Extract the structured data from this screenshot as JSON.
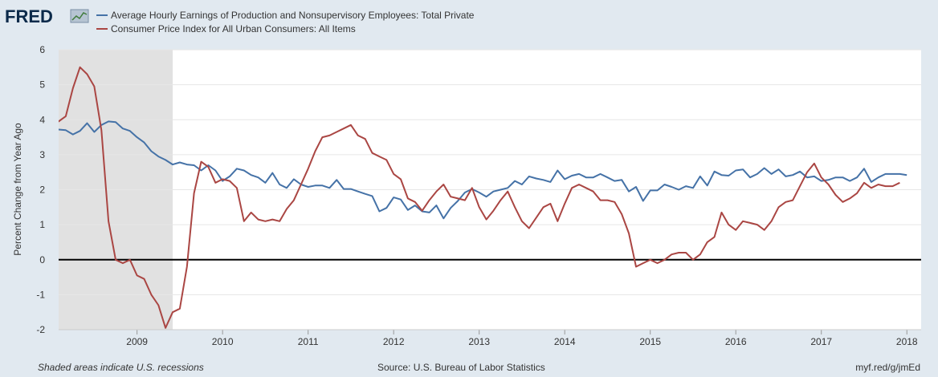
{
  "logo": {
    "text": "FRED"
  },
  "footer": {
    "left": "Shaded areas indicate U.S. recessions",
    "source": "Source: U.S. Bureau of Labor Statistics",
    "link": "myf.red/g/jmEd"
  },
  "colors": {
    "background": "#e1e9f0",
    "plot_bg": "#ffffff",
    "recession": "#e1e1e1",
    "series_wages": "#4572a7",
    "series_cpi": "#aa4643",
    "zero_line": "#000000"
  },
  "chart_data": {
    "type": "line",
    "ylabel": "Percent Change from Year Ago",
    "xlabel": "",
    "ylim": [
      -2,
      6
    ],
    "yticks": [
      -2,
      -1,
      0,
      1,
      2,
      3,
      4,
      5,
      6
    ],
    "xlim": [
      "2008-02",
      "2018-03"
    ],
    "xticks": [
      "2009",
      "2010",
      "2011",
      "2012",
      "2013",
      "2014",
      "2015",
      "2016",
      "2017",
      "2018"
    ],
    "grid": "horizontal",
    "legend_position": "top-left",
    "recessions": [
      {
        "start": "2008-02",
        "end": "2009-06"
      }
    ],
    "series": [
      {
        "name": "Average Hourly Earnings of Production and Nonsupervisory Employees: Total Private",
        "color": "#4572a7",
        "start": "2008-01",
        "values": [
          3.85,
          3.72,
          3.7,
          3.58,
          3.68,
          3.9,
          3.65,
          3.85,
          3.95,
          3.93,
          3.75,
          3.68,
          3.5,
          3.35,
          3.1,
          2.95,
          2.85,
          2.72,
          2.78,
          2.72,
          2.7,
          2.55,
          2.7,
          2.55,
          2.25,
          2.38,
          2.6,
          2.55,
          2.42,
          2.35,
          2.2,
          2.48,
          2.15,
          2.05,
          2.3,
          2.15,
          2.08,
          2.12,
          2.12,
          2.05,
          2.28,
          2.02,
          2.02,
          1.95,
          1.88,
          1.82,
          1.38,
          1.48,
          1.78,
          1.72,
          1.42,
          1.55,
          1.38,
          1.35,
          1.55,
          1.18,
          1.48,
          1.68,
          1.92,
          2.02,
          1.92,
          1.8,
          1.95,
          2.0,
          2.05,
          2.25,
          2.15,
          2.38,
          2.32,
          2.28,
          2.22,
          2.55,
          2.3,
          2.4,
          2.45,
          2.35,
          2.35,
          2.45,
          2.35,
          2.25,
          2.28,
          1.95,
          2.08,
          1.68,
          1.98,
          1.98,
          2.15,
          2.08,
          2.0,
          2.1,
          2.05,
          2.38,
          2.12,
          2.52,
          2.42,
          2.4,
          2.55,
          2.58,
          2.35,
          2.45,
          2.62,
          2.45,
          2.58,
          2.38,
          2.42,
          2.52,
          2.35,
          2.38,
          2.25,
          2.28,
          2.35,
          2.35,
          2.25,
          2.35,
          2.6,
          2.22,
          2.35,
          2.45,
          2.45,
          2.45,
          2.42
        ]
      },
      {
        "name": "Consumer Price Index for All Urban Consumers: All Items",
        "color": "#aa4643",
        "start": "2008-01",
        "values": [
          4.0,
          3.95,
          4.1,
          4.9,
          5.5,
          5.3,
          4.95,
          3.7,
          1.1,
          0.0,
          -0.1,
          0.0,
          -0.45,
          -0.55,
          -1.0,
          -1.3,
          -1.95,
          -1.5,
          -1.4,
          -0.2,
          1.9,
          2.8,
          2.65,
          2.2,
          2.3,
          2.25,
          2.05,
          1.1,
          1.35,
          1.15,
          1.1,
          1.15,
          1.1,
          1.45,
          1.7,
          2.15,
          2.6,
          3.1,
          3.5,
          3.55,
          3.65,
          3.75,
          3.85,
          3.55,
          3.45,
          3.05,
          2.95,
          2.85,
          2.45,
          2.3,
          1.75,
          1.65,
          1.4,
          1.7,
          1.95,
          2.15,
          1.8,
          1.75,
          1.7,
          2.05,
          1.5,
          1.15,
          1.4,
          1.7,
          1.95,
          1.5,
          1.1,
          0.9,
          1.2,
          1.5,
          1.6,
          1.1,
          1.6,
          2.05,
          2.15,
          2.05,
          1.95,
          1.7,
          1.7,
          1.65,
          1.3,
          0.75,
          -0.2,
          -0.1,
          0.0,
          -0.1,
          0.0,
          0.15,
          0.2,
          0.2,
          0.0,
          0.15,
          0.5,
          0.65,
          1.35,
          1.0,
          0.85,
          1.1,
          1.05,
          1.0,
          0.85,
          1.1,
          1.5,
          1.65,
          1.7,
          2.1,
          2.5,
          2.75,
          2.35,
          2.15,
          1.85,
          1.65,
          1.75,
          1.9,
          2.2,
          2.05,
          2.15,
          2.1,
          2.1,
          2.2
        ]
      }
    ]
  }
}
